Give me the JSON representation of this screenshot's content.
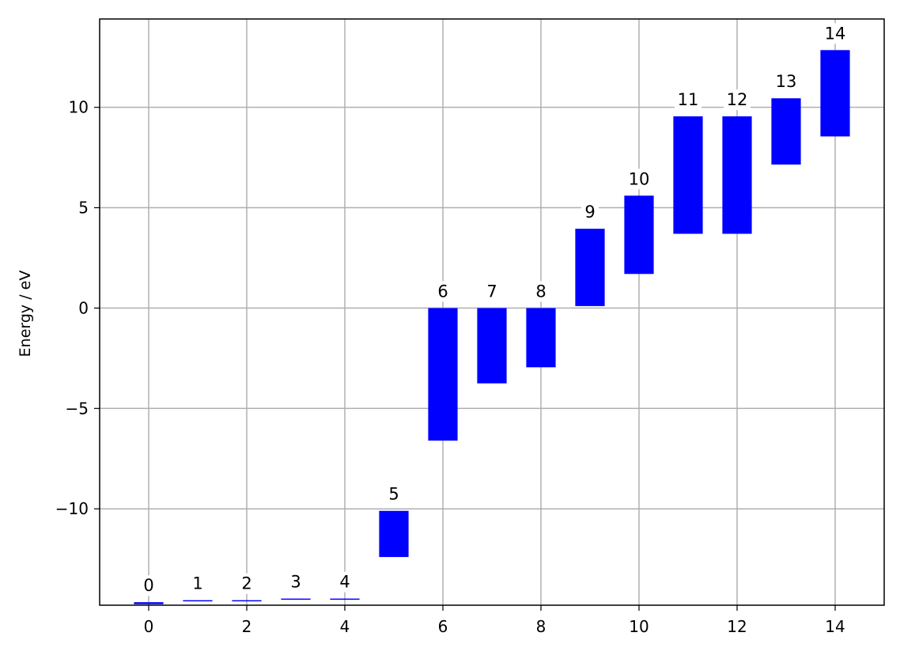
{
  "chart_data": {
    "type": "bar",
    "title": "",
    "xlabel": "",
    "ylabel": "Energy / eV",
    "xlim": [
      -1,
      15
    ],
    "ylim": [
      -14.8,
      14.4
    ],
    "xticks": [
      0,
      2,
      4,
      6,
      8,
      10,
      12,
      14
    ],
    "yticks": [
      -10,
      -5,
      0,
      5,
      10
    ],
    "grid": true,
    "bar_color": "#0000ff",
    "grid_color": "#b0b0b0",
    "bars": [
      {
        "label": "0",
        "x": 0,
        "bottom": -14.75,
        "top": -14.65
      },
      {
        "label": "1",
        "x": 1,
        "bottom": -14.6,
        "top": -14.55
      },
      {
        "label": "2",
        "x": 2,
        "bottom": -14.6,
        "top": -14.55
      },
      {
        "label": "3",
        "x": 3,
        "bottom": -14.5,
        "top": -14.47
      },
      {
        "label": "4",
        "x": 4,
        "bottom": -14.5,
        "top": -14.47
      },
      {
        "label": "5",
        "x": 5,
        "bottom": -12.4,
        "top": -10.1
      },
      {
        "label": "6",
        "x": 6,
        "bottom": -6.6,
        "top": 0.0
      },
      {
        "label": "7",
        "x": 7,
        "bottom": -3.75,
        "top": 0.0
      },
      {
        "label": "8",
        "x": 8,
        "bottom": -2.95,
        "top": 0.0
      },
      {
        "label": "9",
        "x": 9,
        "bottom": 0.1,
        "top": 3.95
      },
      {
        "label": "10",
        "x": 10,
        "bottom": 1.7,
        "top": 5.6
      },
      {
        "label": "11",
        "x": 11,
        "bottom": 3.7,
        "top": 9.55
      },
      {
        "label": "12",
        "x": 12,
        "bottom": 3.7,
        "top": 9.55
      },
      {
        "label": "13",
        "x": 13,
        "bottom": 7.15,
        "top": 10.45
      },
      {
        "label": "14",
        "x": 14,
        "bottom": 8.55,
        "top": 12.85
      }
    ]
  }
}
